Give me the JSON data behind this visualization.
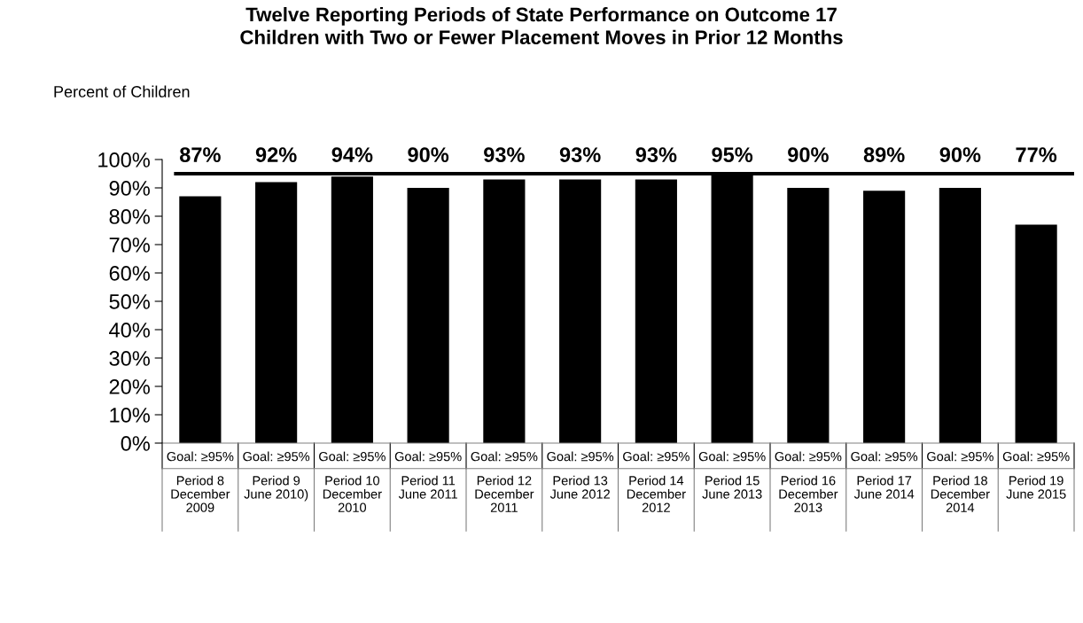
{
  "chart_data": {
    "type": "bar",
    "title": "Twelve Reporting Periods of State Performance on Outcome 17\nChildren with Two or Fewer Placement Moves in Prior 12 Months",
    "ylabel": "Percent of Children",
    "categories": [
      "Goal: ≥95%\nPeriod 8\nDecember\n2009",
      "Goal: ≥95%\nPeriod 9\nJune 2010)",
      "Goal: ≥95%\nPeriod 10\nDecember\n2010",
      "Goal: ≥95%\nPeriod 11\nJune 2011",
      "Goal: ≥95%\nPeriod 12\nDecember\n2011",
      "Goal: ≥95%\nPeriod 13\nJune 2012",
      "Goal: ≥95%\nPeriod 14\nDecember\n2012",
      "Goal: ≥95%\nPeriod 15\nJune 2013",
      "Goal: ≥95%\nPeriod 16\nDecember\n2013",
      "Goal: ≥95%\nPeriod 17\nJune 2014",
      "Goal: ≥95%\nPeriod 18\nDecember\n2014",
      "Goal: ≥95%\nPeriod 19\nJune 2015"
    ],
    "values": [
      87,
      92,
      94,
      90,
      93,
      93,
      93,
      95,
      90,
      89,
      90,
      77
    ],
    "value_labels": [
      "87%",
      "92%",
      "94%",
      "90%",
      "93%",
      "93%",
      "93%",
      "95%",
      "90%",
      "89%",
      "90%",
      "77%"
    ],
    "color": "#000000",
    "ylim": [
      0,
      100
    ],
    "yticks": [
      {
        "value": 0,
        "label": "0%"
      },
      {
        "value": 10,
        "label": "10%"
      },
      {
        "value": 20,
        "label": "20%"
      },
      {
        "value": 30,
        "label": "30%"
      },
      {
        "value": 40,
        "label": "40%"
      },
      {
        "value": 50,
        "label": "50%"
      },
      {
        "value": 60,
        "label": "60%"
      },
      {
        "value": 70,
        "label": "70%"
      },
      {
        "value": 80,
        "label": "80%"
      },
      {
        "value": 90,
        "label": "90%"
      },
      {
        "value": 100,
        "label": "100%"
      }
    ],
    "ref_lines": [
      {
        "axis": "y",
        "value": 95,
        "color": "#000000"
      }
    ],
    "grid": false
  }
}
